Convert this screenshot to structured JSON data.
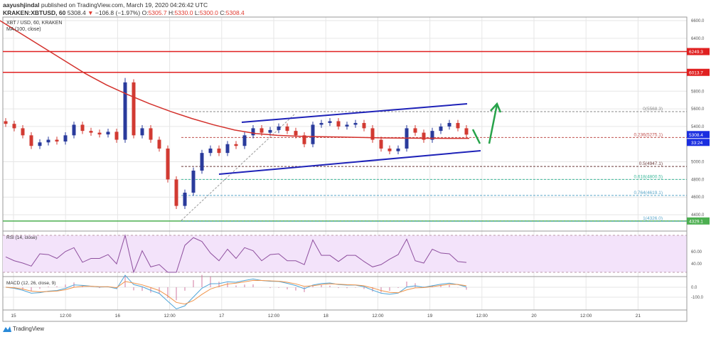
{
  "header": {
    "publisher": "aayushjindal",
    "published": "published on TradingView.com, March 19, 2020 04:26:42 UTC",
    "symbol": "KRAKEN:XBTUSD, 60",
    "last": "5308.4",
    "change": "−106.8 (−1.97%)",
    "o_label": "O:",
    "o": "5305.7",
    "h_label": "H:",
    "h": "5330.0",
    "l_label": "L:",
    "l": "5300.0",
    "c_label": "C:",
    "c": "5308.4"
  },
  "pane": {
    "title": "XBT / USD, 60, KRAKEN",
    "ma_label": "MA (100, close)",
    "rsi_label": "RSI (14, close)",
    "macd_label": "MACD (12, 26, close, 9)"
  },
  "colors": {
    "up": "#2a3b9c",
    "down": "#d23a32",
    "ma": "#d3312c",
    "rsi": "#8e4f9e",
    "macd": "#4fa5d8",
    "signal": "#f0944a",
    "channel": "#1e22b8",
    "arrow": "#27a34a"
  },
  "chart_data": {
    "type": "candlestick",
    "closes": [
      5430,
      5380,
      5300,
      5180,
      5220,
      5250,
      5230,
      5300,
      5420,
      5350,
      5330,
      5310,
      5340,
      5250,
      5900,
      5300,
      5380,
      5250,
      5150,
      4800,
      4500,
      4650,
      4900,
      5100,
      5150,
      5100,
      5200,
      5180,
      5300,
      5380,
      5330,
      5360,
      5400,
      5350,
      5300,
      5200,
      5420,
      5440,
      5460,
      5400,
      5420,
      5440,
      5380,
      5250,
      5150,
      5120,
      5150,
      5380,
      5330,
      5250,
      5350,
      5400,
      5440,
      5380,
      5308
    ],
    "ma100": [
      6600,
      6450,
      6300,
      6150,
      6000,
      5870,
      5760,
      5660,
      5570,
      5490,
      5420,
      5360,
      5320,
      5300,
      5290,
      5285,
      5280,
      5275,
      5270,
      5268,
      5266,
      5265,
      5265
    ],
    "price_axis": [
      "6600.0",
      "6400.0",
      "5800.0",
      "5600.0",
      "5400.0",
      "5000.0",
      "4800.0",
      "4600.0",
      "4400.0"
    ],
    "price_axis_values": [
      6600,
      6400,
      5800,
      5600,
      5400,
      5000,
      4800,
      4600,
      4400
    ],
    "horizontal_levels": [
      {
        "label": "6249.3",
        "value": 6249.3,
        "color": "#e02020"
      },
      {
        "label": "6013.7",
        "value": 6013.7,
        "color": "#e02020"
      },
      {
        "label": "4329.1",
        "value": 4329.1,
        "color": "#4caf50"
      }
    ],
    "fib": [
      {
        "label": "0(5568.3)",
        "value": 5568.3,
        "color": "#888888"
      },
      {
        "label": "0.236(5275.1)",
        "value": 5275.1,
        "color": "#c0504d"
      },
      {
        "label": "0.5(4947.1)",
        "value": 4947.1,
        "color": "#6b3a3a"
      },
      {
        "label": "0.618(4800.5)",
        "value": 4800.5,
        "color": "#3cb89a"
      },
      {
        "label": "0.764(4619.1)",
        "value": 4619.1,
        "color": "#5ba7c9"
      },
      {
        "label": "1(4326.0)",
        "value": 4326.0,
        "color": "#5ba7c9"
      }
    ],
    "last_price_tag": "5308.4",
    "countdown_tag": "33:24",
    "rsi_axis": [
      "60.00",
      "40.00"
    ],
    "macd_axis": [
      "0.0",
      "-100.0"
    ],
    "time_axis": [
      "15",
      "12:00",
      "16",
      "12:00",
      "17",
      "12:00",
      "18",
      "12:00",
      "19",
      "12:00",
      "20",
      "12:00",
      "21"
    ]
  },
  "footer": {
    "brand": "TradingView"
  }
}
